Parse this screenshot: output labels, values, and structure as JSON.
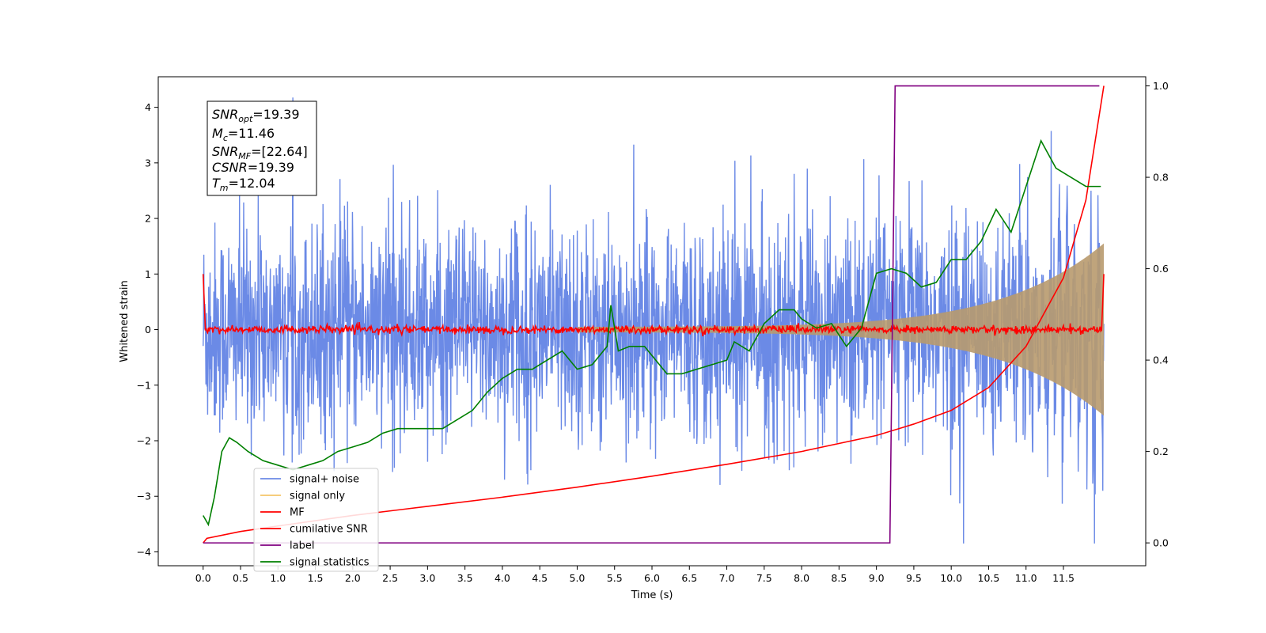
{
  "chart_data": {
    "type": "line",
    "xlabel": "Time (s)",
    "ylabel": "Whitened strain",
    "xlim": [
      -0.6,
      12.6
    ],
    "ylim_left": [
      -4.25,
      4.55
    ],
    "ylim_right": [
      -0.05,
      1.02
    ],
    "x_ticks": [
      0.0,
      0.5,
      1.0,
      1.5,
      2.0,
      2.5,
      3.0,
      3.5,
      4.0,
      4.5,
      5.0,
      5.5,
      6.0,
      6.5,
      7.0,
      7.5,
      8.0,
      8.5,
      9.0,
      9.5,
      10.0,
      10.5,
      11.0,
      11.5
    ],
    "x_tick_labels": [
      "0.0",
      "0.5",
      "1.0",
      "1.5",
      "2.0",
      "2.5",
      "3.0",
      "3.5",
      "4.0",
      "4.5",
      "5.0",
      "5.5",
      "6.0",
      "6.5",
      "7.0",
      "7.5",
      "8.0",
      "8.5",
      "9.0",
      "9.5",
      "10.0",
      "10.5",
      "11.0",
      "11.5"
    ],
    "y_ticks_left": [
      -4,
      -3,
      -2,
      -1,
      0,
      1,
      2,
      3,
      4
    ],
    "y_tick_labels_left": [
      "−4",
      "−3",
      "−2",
      "−1",
      "0",
      "1",
      "2",
      "3",
      "4"
    ],
    "y_ticks_right": [
      0.0,
      0.2,
      0.4,
      0.6,
      0.8,
      1.0
    ],
    "y_tick_labels_right": [
      "0.0",
      "0.2",
      "0.4",
      "0.6",
      "0.8",
      "1.0"
    ],
    "annotations": {
      "snr_opt": {
        "name": "SNR",
        "sub": "opt",
        "value": "=19.39"
      },
      "mc": {
        "name": "M",
        "sub": "c",
        "value": "=11.46"
      },
      "snr_mf": {
        "name": "SNR",
        "sub": "MF",
        "value": "=[22.64]"
      },
      "csnr": {
        "name": "CSNR",
        "sub": "",
        "value": "=19.39"
      },
      "tm": {
        "name": "T",
        "sub": "m",
        "value": "=12.04"
      }
    },
    "series": [
      {
        "name": "signal+ noise",
        "color": "#6b8ae6",
        "axis": "left",
        "noise_std": 1.0,
        "x_range": [
          0.0,
          12.04
        ],
        "ymax": 4.18,
        "ymin": -3.85
      },
      {
        "name": "signal only",
        "color": "#f5c66a",
        "axis": "left",
        "chirp_end_x": 12.04,
        "amplitude_end": 1.55,
        "amplitude_start": 0.05
      },
      {
        "name": "MF",
        "color": "#ff0000",
        "axis": "left",
        "x_range": [
          0.0,
          12.04
        ],
        "start_value": 1.0,
        "end_value": 1.0,
        "baseline": 0.0
      },
      {
        "name": "cumilative SNR",
        "color": "#ff0000",
        "axis": "right",
        "x": [
          0.0,
          0.05,
          0.5,
          1.0,
          2.0,
          3.0,
          4.0,
          5.0,
          6.0,
          7.0,
          8.0,
          9.0,
          9.5,
          10.0,
          10.5,
          11.0,
          11.5,
          11.8,
          12.04
        ],
        "values": [
          0.0,
          0.01,
          0.025,
          0.037,
          0.06,
          0.08,
          0.1,
          0.122,
          0.146,
          0.172,
          0.2,
          0.235,
          0.26,
          0.29,
          0.34,
          0.43,
          0.58,
          0.75,
          1.0
        ]
      },
      {
        "name": "label",
        "color": "#800080",
        "axis": "right",
        "x": [
          0.0,
          9.18,
          9.25,
          11.98
        ],
        "values": [
          0.0,
          0.0,
          1.0,
          1.0
        ]
      },
      {
        "name": "signal statistics",
        "color": "#008000",
        "axis": "right",
        "x": [
          0.0,
          0.07,
          0.15,
          0.25,
          0.35,
          0.45,
          0.6,
          0.8,
          1.0,
          1.2,
          1.4,
          1.6,
          1.8,
          2.0,
          2.2,
          2.4,
          2.6,
          2.8,
          3.0,
          3.2,
          3.4,
          3.6,
          3.8,
          4.0,
          4.2,
          4.4,
          4.6,
          4.8,
          5.0,
          5.2,
          5.4,
          5.45,
          5.55,
          5.7,
          5.9,
          6.0,
          6.2,
          6.4,
          6.6,
          6.8,
          7.0,
          7.1,
          7.3,
          7.5,
          7.7,
          7.9,
          8.0,
          8.2,
          8.4,
          8.6,
          8.8,
          9.0,
          9.2,
          9.4,
          9.6,
          9.8,
          10.0,
          10.2,
          10.4,
          10.6,
          10.8,
          11.0,
          11.2,
          11.4,
          11.6,
          11.8,
          12.0
        ],
        "values": [
          0.06,
          0.04,
          0.1,
          0.2,
          0.23,
          0.22,
          0.2,
          0.18,
          0.17,
          0.16,
          0.17,
          0.18,
          0.2,
          0.21,
          0.22,
          0.24,
          0.25,
          0.25,
          0.25,
          0.25,
          0.27,
          0.29,
          0.33,
          0.36,
          0.38,
          0.38,
          0.4,
          0.42,
          0.38,
          0.39,
          0.43,
          0.52,
          0.42,
          0.43,
          0.43,
          0.41,
          0.37,
          0.37,
          0.38,
          0.39,
          0.4,
          0.44,
          0.42,
          0.48,
          0.51,
          0.51,
          0.49,
          0.47,
          0.48,
          0.43,
          0.47,
          0.59,
          0.6,
          0.59,
          0.56,
          0.57,
          0.62,
          0.62,
          0.66,
          0.73,
          0.68,
          0.78,
          0.88,
          0.82,
          0.8,
          0.78,
          0.78
        ]
      }
    ],
    "legend": {
      "position": "lower-left",
      "entries": [
        "signal+ noise",
        "signal only",
        "MF",
        "cumilative SNR",
        "label",
        "signal statistics"
      ]
    }
  }
}
